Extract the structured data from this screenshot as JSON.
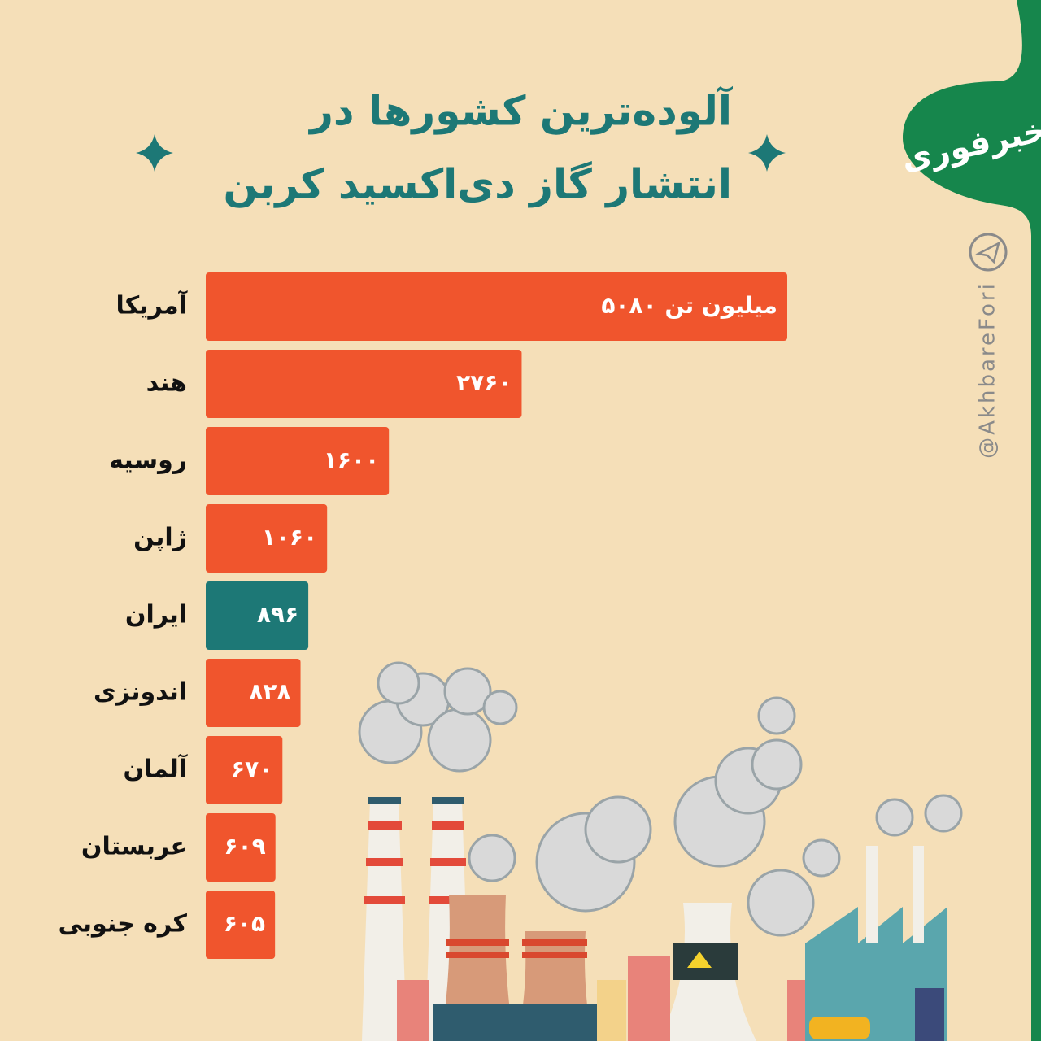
{
  "chart_data": {
    "type": "bar",
    "orientation": "horizontal",
    "title": [
      "آلوده‌ترین کشورها در",
      "انتشار گاز دی‌اکسید کربن"
    ],
    "categories": [
      "آمریکا",
      "هند",
      "روسیه",
      "ژاپن",
      "ایران",
      "اندونزی",
      "آلمان",
      "عربستان",
      "کره جنوبی"
    ],
    "values": [
      5080,
      2760,
      1600,
      1060,
      896,
      828,
      670,
      609,
      605
    ],
    "value_labels": [
      "۵۰۸۰ میلیون تن",
      "۲۷۶۰",
      "۱۶۰۰",
      "۱۰۶۰",
      "۸۹۶",
      "۸۲۸",
      "۶۷۰",
      "۶۰۹",
      "۶۰۵"
    ],
    "colors": [
      "#f0552d",
      "#f0552d",
      "#f0552d",
      "#f0552d",
      "#1d7876",
      "#f0552d",
      "#f0552d",
      "#f0552d",
      "#f0552d"
    ]
  },
  "brand": {
    "logo": "خبرفوری",
    "handle": "@AkhbareFori"
  }
}
